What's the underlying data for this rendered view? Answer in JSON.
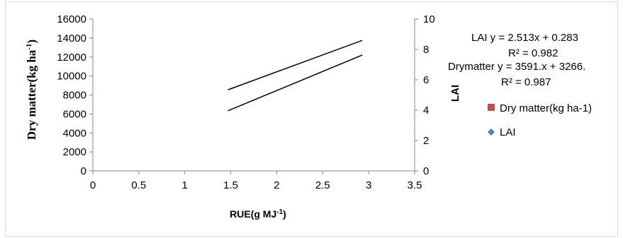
{
  "chart_data": {
    "type": "line",
    "xlabel": "RUE(g MJ",
    "xlabel_sup": "-1",
    "xlabel_end": ")",
    "ylabel": "Dry matter(kg ha",
    "ylabel_sup": "-1",
    "ylabel_end": ")",
    "y2label": "LAI",
    "xlim": [
      0,
      3.5
    ],
    "ylim": [
      0,
      16000
    ],
    "y2lim": [
      0,
      10
    ],
    "xticks": [
      0,
      0.5,
      1,
      1.5,
      2,
      2.5,
      3,
      3.5
    ],
    "xtick_labels": [
      "0",
      "0.5",
      "1",
      "1.5",
      "2",
      "2.5",
      "3",
      "3.5"
    ],
    "yticks": [
      0,
      2000,
      4000,
      6000,
      8000,
      10000,
      12000,
      14000,
      16000
    ],
    "ytick_labels": [
      "0",
      "2000",
      "4000",
      "6000",
      "8000",
      "10000",
      "12000",
      "14000",
      "16000"
    ],
    "y2ticks": [
      0,
      2,
      4,
      6,
      8,
      10
    ],
    "y2tick_labels": [
      "0",
      "2",
      "4",
      "6",
      "8",
      "10"
    ],
    "grid": false,
    "legend_position": "right",
    "series": [
      {
        "name": "Dry matter(kg ha-1)",
        "axis": "left",
        "color": "#c0504d",
        "marker": "square",
        "trendline_x": [
          1.47,
          2.93
        ],
        "trendline_y": [
          8550,
          13750
        ]
      },
      {
        "name": "LAI",
        "axis": "right",
        "color": "#4f81bd",
        "marker": "diamond",
        "trendline_x": [
          1.47,
          2.93
        ],
        "trendline_y": [
          3.96,
          7.63
        ]
      }
    ],
    "annotations": [
      "LAI   y = 2.513x + 0.283",
      "R² = 0.982",
      "Drymatter y = 3591.x + 3266.",
      "R² = 0.987"
    ]
  }
}
